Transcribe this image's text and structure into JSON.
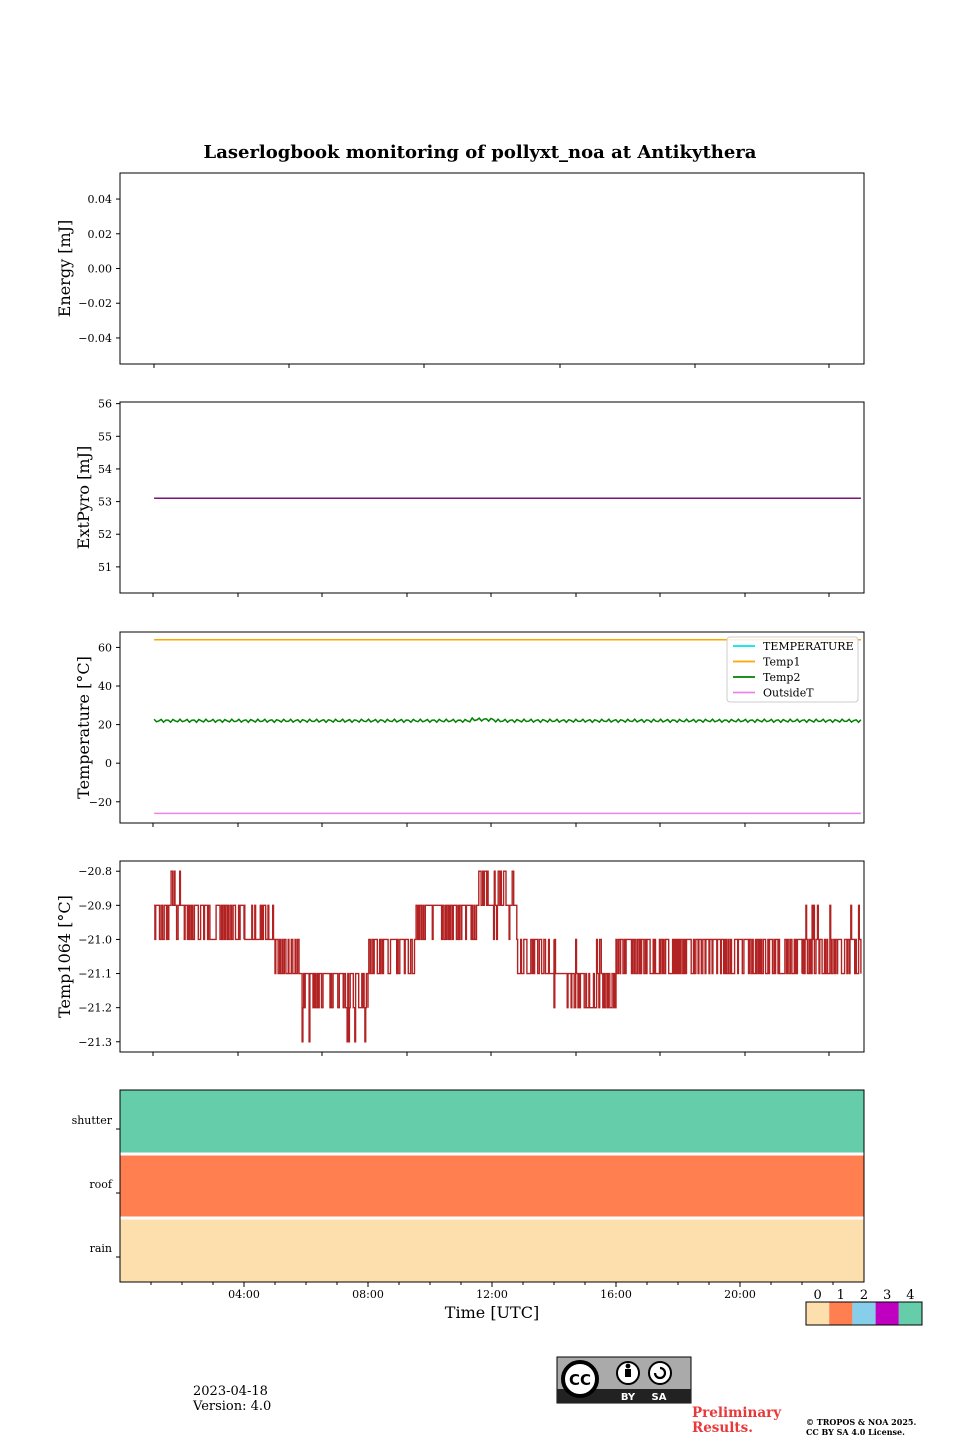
{
  "title": "Laserlogbook monitoring of pollyxt_noa at Antikythera",
  "date_text": "2023-04-18",
  "version_text": "Version: 4.0",
  "preliminary_text": "Preliminary Results.",
  "copyright_line1": "© TROPOS & NOA 2025.",
  "copyright_line2": "CC BY SA 4.0 License.",
  "license_badge": {
    "label": "CC",
    "by": "BY",
    "sa": "SA"
  },
  "chart_data": [
    {
      "type": "line",
      "ylabel": "Energy [mJ]",
      "xlim": [
        0,
        24
      ],
      "ylim": [
        -0.055,
        0.055
      ],
      "yticks": [
        0.04,
        0.02,
        0.0,
        -0.02,
        -0.04
      ],
      "yticklabels": [
        "0.04",
        "0.02",
        "0.00",
        "−0.02",
        "−0.04"
      ],
      "series": []
    },
    {
      "type": "line",
      "ylabel": "ExtPyro [mJ]",
      "xlim": [
        0,
        24
      ],
      "ylim": [
        50.2,
        56.05
      ],
      "yticks": [
        56,
        55,
        54,
        53,
        52,
        51
      ],
      "yticklabels": [
        "56",
        "55",
        "54",
        "53",
        "52",
        "51"
      ],
      "series": [
        {
          "color": "#7a137a",
          "x": [
            0,
            24
          ],
          "y": [
            53.1,
            53.1
          ]
        }
      ]
    },
    {
      "type": "line",
      "ylabel": "Temperature [°C]",
      "xlim": [
        0,
        24
      ],
      "ylim": [
        -31,
        68
      ],
      "yticks": [
        60,
        40,
        20,
        0,
        -20
      ],
      "yticklabels": [
        "60",
        "40",
        "20",
        "0",
        "−20"
      ],
      "legend": "top-right",
      "series": [
        {
          "name": "TEMPERATURE",
          "color": "#00e5e5",
          "x": [],
          "y": []
        },
        {
          "name": "Temp1",
          "color": "#ffa500",
          "x": [
            0,
            24
          ],
          "y": [
            64,
            64
          ]
        },
        {
          "name": "Temp2",
          "color": "#008000",
          "x": [
            0,
            24
          ],
          "y": [
            22,
            22
          ],
          "oscillation": 0.8
        },
        {
          "name": "OutsideT",
          "color": "#ee82ee",
          "x": [
            0,
            24
          ],
          "y": [
            -26,
            -26
          ]
        }
      ]
    },
    {
      "type": "line",
      "ylabel": "Temp1064 [°C]",
      "xlim": [
        0,
        24
      ],
      "ylim": [
        -21.33,
        -20.77
      ],
      "yticks": [
        -20.8,
        -20.9,
        -21.0,
        -21.1,
        -21.2,
        -21.3
      ],
      "yticklabels": [
        "−20.8",
        "−20.9",
        "−21.0",
        "−21.1",
        "−21.2",
        "−21.3"
      ],
      "series": [
        {
          "color": "#b22222",
          "segments": [
            {
              "x": [
                0,
                2.5
              ],
              "levels": [
                -20.9,
                -21.0,
                -20.8
              ]
            },
            {
              "x": [
                2.5,
                4.0
              ],
              "levels": [
                -20.9,
                -21.0
              ]
            },
            {
              "x": [
                4.0,
                5.0
              ],
              "levels": [
                -21.0,
                -20.9
              ]
            },
            {
              "x": [
                5.0,
                5.8
              ],
              "levels": [
                -21.0,
                -21.1
              ]
            },
            {
              "x": [
                5.8,
                8.0
              ],
              "levels": [
                -21.1,
                -21.2,
                -21.3
              ]
            },
            {
              "x": [
                8.0,
                9.5
              ],
              "levels": [
                -21.0,
                -21.1
              ]
            },
            {
              "x": [
                9.5,
                11.5
              ],
              "levels": [
                -20.9,
                -21.0
              ]
            },
            {
              "x": [
                11.5,
                12.8
              ],
              "levels": [
                -20.9,
                -20.8,
                -21.0
              ]
            },
            {
              "x": [
                12.8,
                14.0
              ],
              "levels": [
                -21.0,
                -21.1
              ]
            },
            {
              "x": [
                14.0,
                16.0
              ],
              "levels": [
                -21.1,
                -21.2,
                -21.0
              ]
            },
            {
              "x": [
                16.0,
                22.0
              ],
              "levels": [
                -21.0,
                -21.1
              ]
            },
            {
              "x": [
                22.0,
                24.0
              ],
              "levels": [
                -21.0,
                -21.1,
                -20.9
              ]
            }
          ]
        }
      ]
    },
    {
      "type": "heatmap",
      "xlabel": "Time [UTC]",
      "xlim": [
        0,
        24
      ],
      "xticks": [
        4,
        8,
        12,
        16,
        20
      ],
      "xticklabels": [
        "04:00",
        "08:00",
        "12:00",
        "16:00",
        "20:00"
      ],
      "rows": [
        "shutter",
        "roof",
        "rain"
      ],
      "values": [
        4,
        1,
        0
      ],
      "colorbar": {
        "labels": [
          "0",
          "1",
          "2",
          "3",
          "4"
        ],
        "colors": [
          "#fddfad",
          "#ff7f50",
          "#87ceeb",
          "#c000c0",
          "#66cdaa"
        ]
      }
    }
  ]
}
